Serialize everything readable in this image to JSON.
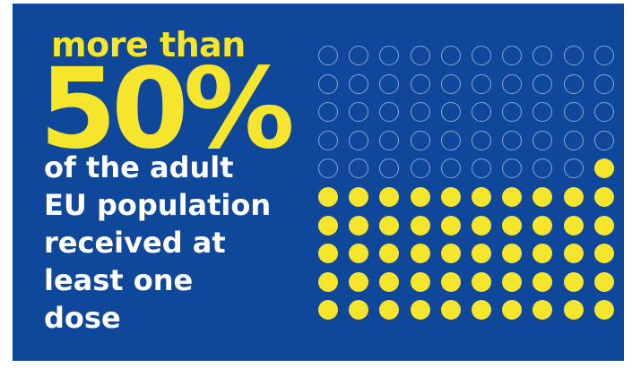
{
  "headline": {
    "prefix": "more than",
    "figure": "50%"
  },
  "description": {
    "lines": [
      "of the adult",
      "EU population",
      "received at",
      "least one",
      "dose"
    ]
  },
  "dot_grid": {
    "rows": 10,
    "columns": 10,
    "filled_count": 51,
    "filled_color": "#f5e52c",
    "empty_outline_color": "#8aa4cf"
  },
  "colors": {
    "background": "#0f479b",
    "accent": "#f5e52c",
    "text": "#ffffff"
  }
}
